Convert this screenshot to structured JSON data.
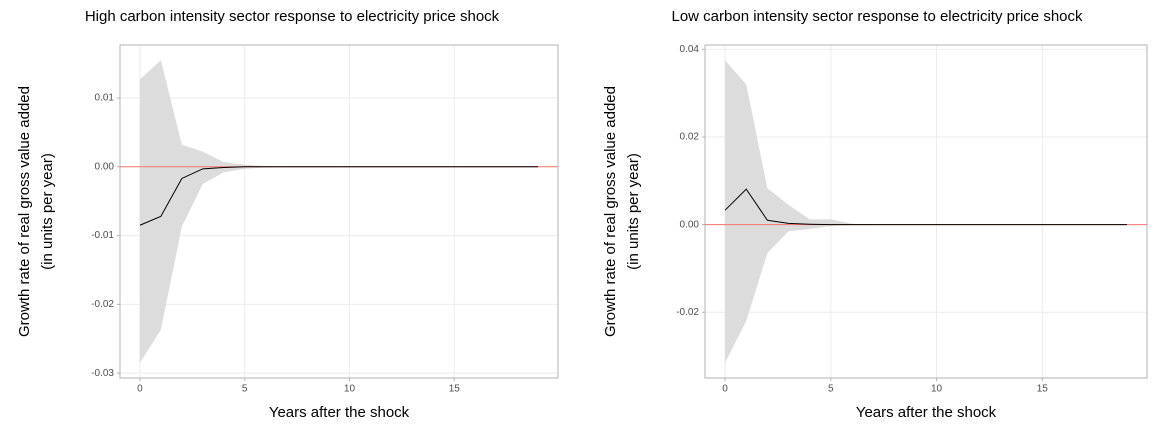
{
  "chart_data": [
    {
      "type": "line",
      "title": "High carbon intensity sector response to electricity price shock",
      "x_label": "Years after the shock",
      "y_label": [
        "Growth rate of real gross value added",
        "(in units per year)"
      ],
      "x": [
        0,
        1,
        2,
        3,
        4,
        5,
        6,
        7,
        8,
        9,
        10,
        11,
        12,
        13,
        14,
        15,
        16,
        17,
        18,
        19
      ],
      "values": [
        -0.0085,
        -0.0072,
        -0.0017,
        -0.0003,
        -0.0001,
        0,
        0,
        0,
        0,
        0,
        0,
        0,
        0,
        0,
        0,
        0,
        0,
        0,
        0,
        0
      ],
      "upper": [
        0.0127,
        0.0155,
        0.0032,
        0.0022,
        0.0007,
        0.0003,
        0.0001,
        0,
        0,
        0,
        0,
        0,
        0,
        0,
        0,
        0,
        0,
        0,
        0,
        0
      ],
      "lower": [
        -0.0285,
        -0.0237,
        -0.0087,
        -0.0025,
        -0.0008,
        -0.0003,
        -0.0001,
        0,
        0,
        0,
        0,
        0,
        0,
        0,
        0,
        0,
        0,
        0,
        0,
        0
      ],
      "color": "#000000",
      "band_color": "#dcdcdc",
      "hline": {
        "value": 0,
        "color": "#f8766d"
      },
      "xlim": [
        -0.95,
        19.95
      ],
      "xticks": [
        0,
        5,
        10,
        15
      ],
      "ylim": [
        -0.0307,
        0.0177
      ],
      "yticks": [
        0.01,
        {
          "value": 0,
          "label": "0.00"
        },
        -0.01,
        -0.02,
        -0.03
      ],
      "grid": true
    },
    {
      "type": "line",
      "title": "Low carbon intensity sector response to electricity price shock",
      "x_label": "Years after the shock",
      "y_label": [
        "Growth rate of real gross value added",
        "(in units per year)"
      ],
      "x": [
        0,
        1,
        2,
        3,
        4,
        5,
        6,
        7,
        8,
        9,
        10,
        11,
        12,
        13,
        14,
        15,
        16,
        17,
        18,
        19
      ],
      "values": [
        0.0033,
        0.0081,
        0.001,
        0.0003,
        0.0001,
        0,
        0,
        0,
        0,
        0,
        0,
        0,
        0,
        0,
        0,
        0,
        0,
        0,
        0,
        0
      ],
      "upper": [
        0.0375,
        0.032,
        0.0083,
        0.0045,
        0.0012,
        0.0012,
        0.0002,
        0,
        0,
        0,
        0,
        0,
        0,
        0,
        0,
        0,
        0,
        0,
        0,
        0
      ],
      "lower": [
        -0.0315,
        -0.022,
        -0.0065,
        -0.0015,
        -0.001,
        -0.0003,
        0,
        0,
        0,
        0,
        0,
        0,
        0,
        0,
        0,
        0,
        0,
        0,
        0,
        0
      ],
      "color": "#000000",
      "band_color": "#dcdcdc",
      "hline": {
        "value": 0,
        "color": "#f8766d"
      },
      "xlim": [
        -0.95,
        19.95
      ],
      "xticks": [
        0,
        5,
        10,
        15
      ],
      "ylim": [
        -0.035,
        0.041
      ],
      "yticks": [
        0.04,
        0.02,
        {
          "value": 0,
          "label": "0.00"
        },
        -0.02
      ],
      "grid": true
    }
  ]
}
